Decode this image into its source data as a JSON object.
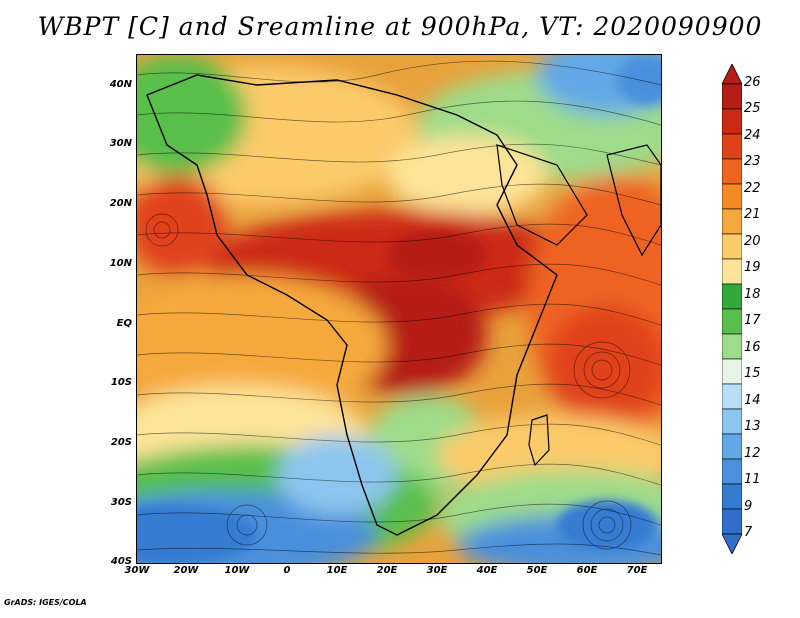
{
  "title": "WBPT [C] and Sreamline at 900hPa, VT: 2020090900",
  "credit": "GrADS: IGES/COLA",
  "map": {
    "lat_labels": [
      "40N",
      "30N",
      "20N",
      "10N",
      "EQ",
      "10S",
      "20S",
      "30S",
      "40S"
    ],
    "lon_labels": [
      "30W",
      "20W",
      "10W",
      "0",
      "10E",
      "20E",
      "30E",
      "40E",
      "50E",
      "60E",
      "70E"
    ]
  },
  "colorbar": {
    "labels": [
      "26",
      "25",
      "24",
      "23",
      "22",
      "21",
      "20",
      "19",
      "18",
      "17",
      "16",
      "15",
      "14",
      "13",
      "12",
      "11",
      "9",
      "7"
    ],
    "colors": [
      "#b51d16",
      "#cc2a12",
      "#e0431a",
      "#ee6320",
      "#f48a24",
      "#f5a93c",
      "#fbcb6a",
      "#fde498",
      "#34a83c",
      "#58bf4c",
      "#9ddc8a",
      "#e6f5e6",
      "#b8dff5",
      "#8cc6ee",
      "#62a8e6",
      "#4a90dc",
      "#347bd2",
      "#2f6fcb"
    ]
  }
}
